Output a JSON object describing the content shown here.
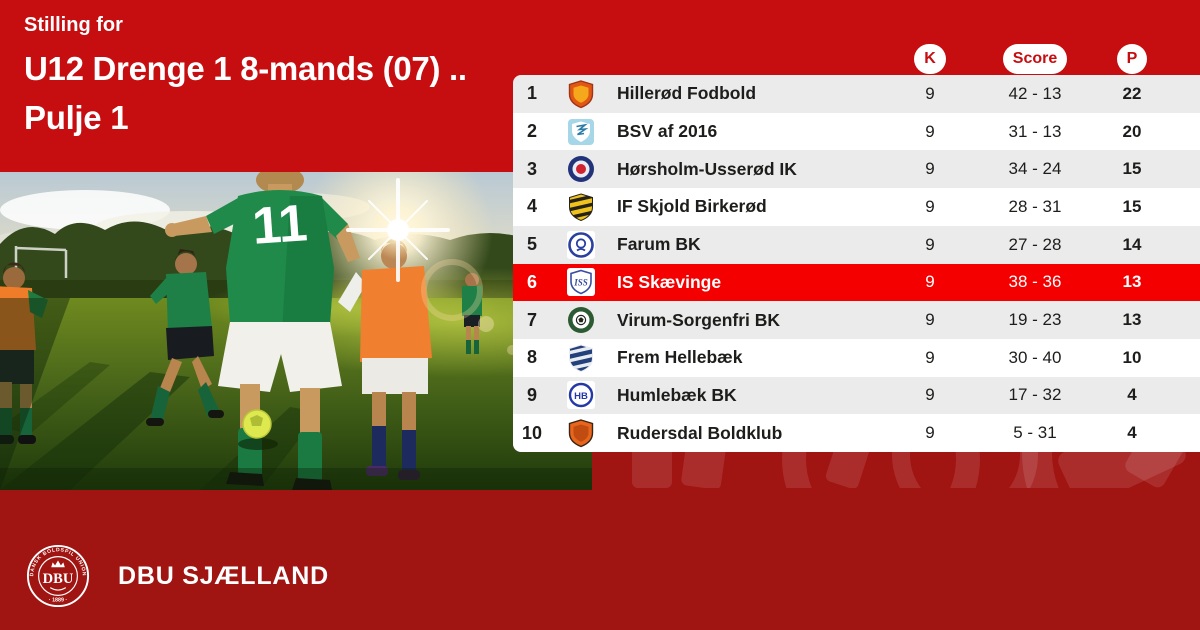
{
  "card": {
    "kicker": "Stilling for",
    "title_line1": "U12 Drenge 1 8-mands (07) ..",
    "title_line2": "Pulje 1"
  },
  "table": {
    "columns": {
      "matches": "K",
      "score": "Score",
      "points": "P"
    },
    "rows": [
      {
        "pos": "1",
        "club": "Hillerød Fodbold",
        "matches": "9",
        "score": "42 - 13",
        "points": "22",
        "highlight": false,
        "logo": {
          "name": "hillerod-fodbold-crest",
          "kind": "shield",
          "c1": "#e15814",
          "c2": "#f6a81c",
          "c3": "#a03417"
        }
      },
      {
        "pos": "2",
        "club": "BSV af 2016",
        "matches": "9",
        "score": "31 - 13",
        "points": "20",
        "highlight": false,
        "logo": {
          "name": "bsv-af-2016-crest",
          "kind": "pennant",
          "c1": "#a6d7e8",
          "c2": "#ffffff",
          "c3": "#2a7ca8"
        }
      },
      {
        "pos": "3",
        "club": "Hørsholm-Usserød IK",
        "matches": "9",
        "score": "34 - 24",
        "points": "15",
        "highlight": false,
        "logo": {
          "name": "horsholm-usserod-ik-crest",
          "kind": "ring",
          "c1": "#23337a",
          "c2": "#cf2430",
          "c3": "#e8ecf4"
        }
      },
      {
        "pos": "4",
        "club": "IF Skjold Birkerød",
        "matches": "9",
        "score": "28 - 31",
        "points": "15",
        "highlight": false,
        "logo": {
          "name": "if-skjold-birkerod-crest",
          "kind": "shield-striped",
          "c1": "#f0c31c",
          "c2": "#26221a"
        }
      },
      {
        "pos": "5",
        "club": "Farum BK",
        "matches": "9",
        "score": "27 - 28",
        "points": "14",
        "highlight": false,
        "logo": {
          "name": "farum-bk-crest",
          "kind": "ring-glyph",
          "c1": "#2a3fa0"
        }
      },
      {
        "pos": "6",
        "club": "IS Skævinge",
        "matches": "9",
        "score": "38 - 36",
        "points": "13",
        "highlight": true,
        "logo": {
          "name": "is-skaevinge-crest",
          "kind": "shield-text",
          "c2": "#3a4da0",
          "text": "ISS"
        }
      },
      {
        "pos": "7",
        "club": "Virum-Sorgenfri BK",
        "matches": "9",
        "score": "19 - 23",
        "points": "13",
        "highlight": false,
        "logo": {
          "name": "virum-sorgenfri-bk-crest",
          "kind": "ball-ring",
          "c1": "#2c5a33",
          "c3": "#22251f"
        }
      },
      {
        "pos": "8",
        "club": "Frem Hellebæk",
        "matches": "9",
        "score": "30 - 40",
        "points": "10",
        "highlight": false,
        "logo": {
          "name": "frem-hellebaek-crest",
          "kind": "shield-striped",
          "c1": "#24407a",
          "c2": "#e8ecf2"
        }
      },
      {
        "pos": "9",
        "club": "Humlebæk BK",
        "matches": "9",
        "score": "17 - 32",
        "points": "4",
        "highlight": false,
        "logo": {
          "name": "humlebaek-bk-crest",
          "kind": "ring-text",
          "c1": "#2438a8",
          "text": "HB"
        }
      },
      {
        "pos": "10",
        "club": "Rudersdal Boldklub",
        "matches": "9",
        "score": "5 - 31",
        "points": "4",
        "highlight": false,
        "logo": {
          "name": "rudersdal-boldklub-crest",
          "kind": "shield",
          "c1": "#e8651c",
          "c2": "#c14c12",
          "c3": "#3a2413"
        }
      }
    ]
  },
  "footer": {
    "brand": "DBU SJÆLLAND",
    "emblem": {
      "arc_text": "DANSK BOLDSPIL UNION",
      "year": "· 1889 ·",
      "center": "DBU"
    }
  },
  "colors": {
    "band_red": "#c60d10",
    "highlight_red": "#f40000",
    "bottom_red": "#a01412",
    "row_gray": "#ebebeb",
    "text_dark": "#1d1d1b",
    "badge_text_red": "#c60d10"
  }
}
